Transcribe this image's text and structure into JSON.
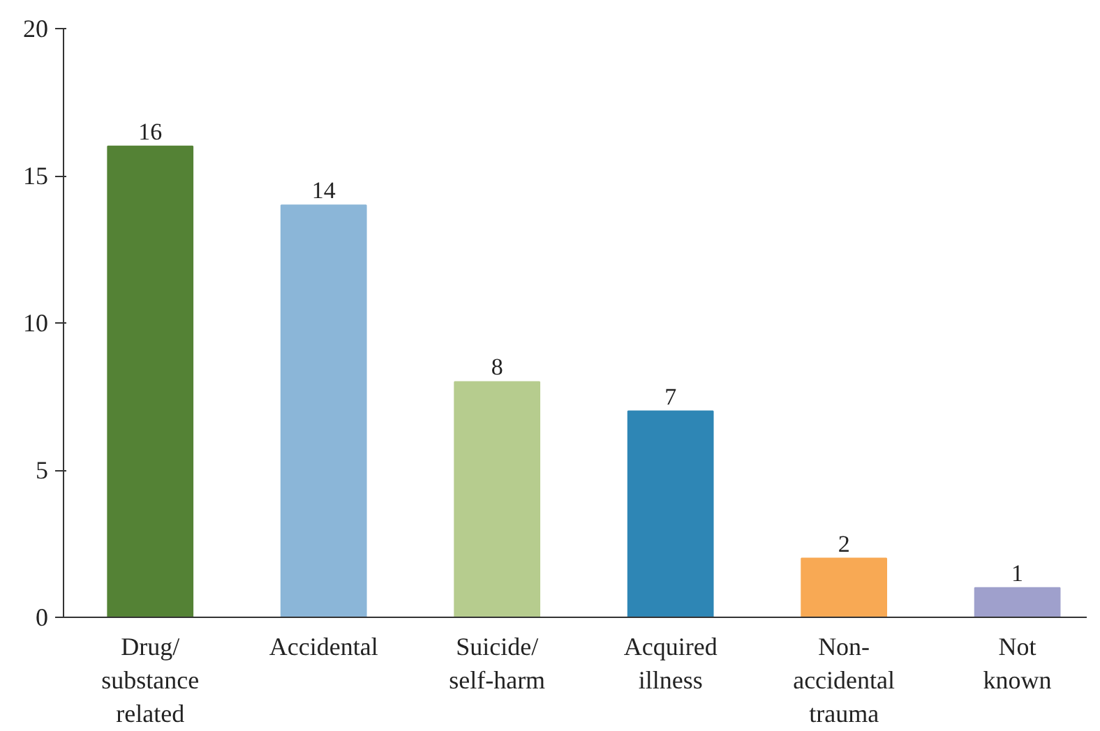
{
  "chart_data": {
    "type": "bar",
    "categories": [
      "Drug/\nsubstance\nrelated",
      "Accidental",
      "Suicide/\nself-harm",
      "Acquired\nillness",
      "Non-\naccidental\ntrauma",
      "Not\nknown"
    ],
    "values": [
      16,
      14,
      8,
      7,
      2,
      1
    ],
    "colors": [
      "#548235",
      "#8bb6d8",
      "#b6cc8e",
      "#2e86b5",
      "#f8a954",
      "#9fa0cc"
    ],
    "ylim": [
      0,
      20
    ],
    "yticks": [
      0,
      5,
      10,
      15,
      20
    ],
    "grid": false,
    "data_labels": true
  }
}
